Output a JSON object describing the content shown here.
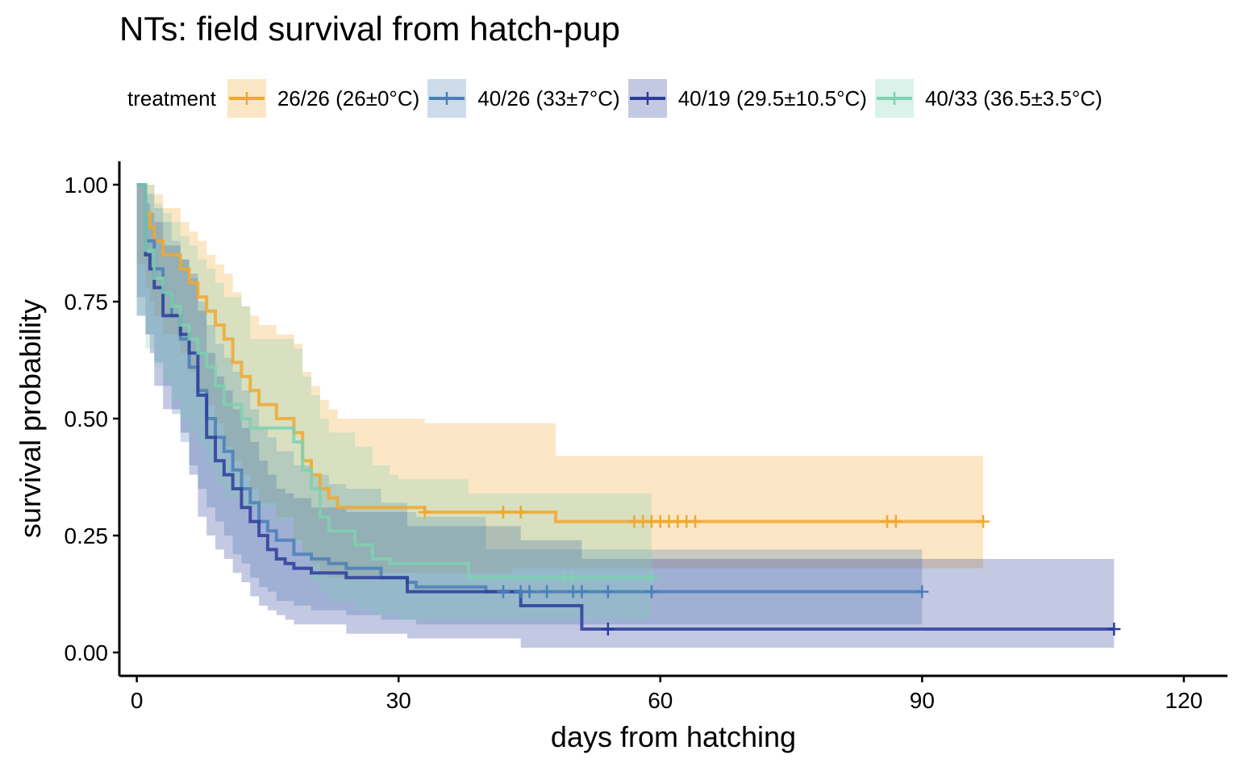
{
  "chart_data": {
    "type": "line",
    "subtype": "kaplan-meier step curves with confidence bands and censor marks",
    "title": "NTs: field survival from hatch-pup",
    "xlabel": "days from hatching",
    "ylabel": "survival probability",
    "xlim": [
      -2,
      125
    ],
    "ylim": [
      -0.05,
      1.05
    ],
    "xticks": [
      0,
      30,
      60,
      90,
      120
    ],
    "xtick_labels": [
      "0",
      "30",
      "60",
      "90",
      "120"
    ],
    "yticks": [
      0,
      0.25,
      0.5,
      0.75,
      1.0
    ],
    "ytick_labels": [
      "0.00",
      "0.25",
      "0.50",
      "0.75",
      "1.00"
    ],
    "grid": false,
    "legend_title": "treatment",
    "legend_position": "top",
    "series": [
      {
        "name": "26/26 (26±0°C)",
        "color": "#F0A830",
        "x": [
          0,
          1,
          1.5,
          2,
          3,
          5,
          6,
          7,
          8,
          9,
          10,
          11,
          12,
          13,
          14,
          16,
          18,
          19,
          20,
          21,
          22,
          23,
          25,
          28,
          33,
          35,
          40,
          43,
          48,
          97
        ],
        "y": [
          1.0,
          0.94,
          0.91,
          0.88,
          0.85,
          0.82,
          0.79,
          0.76,
          0.73,
          0.7,
          0.67,
          0.62,
          0.59,
          0.56,
          0.53,
          0.5,
          0.47,
          0.41,
          0.38,
          0.35,
          0.33,
          0.31,
          0.31,
          0.31,
          0.3,
          0.3,
          0.3,
          0.3,
          0.28,
          0.28
        ],
        "lower": [
          1.0,
          0.83,
          0.78,
          0.75,
          0.72,
          0.68,
          0.64,
          0.6,
          0.56,
          0.53,
          0.49,
          0.44,
          0.41,
          0.38,
          0.35,
          0.32,
          0.29,
          0.24,
          0.21,
          0.19,
          0.17,
          0.16,
          0.16,
          0.16,
          0.17,
          0.17,
          0.17,
          0.17,
          0.18,
          0.18
        ],
        "upper": [
          1.0,
          1.0,
          1.0,
          0.98,
          0.95,
          0.92,
          0.9,
          0.88,
          0.85,
          0.83,
          0.81,
          0.77,
          0.74,
          0.72,
          0.7,
          0.68,
          0.66,
          0.6,
          0.57,
          0.54,
          0.52,
          0.5,
          0.5,
          0.5,
          0.49,
          0.49,
          0.49,
          0.49,
          0.42,
          0.42
        ],
        "censored": [
          33,
          42,
          44,
          57,
          58,
          59,
          60,
          61,
          62,
          63,
          64,
          86,
          87,
          97
        ],
        "censored_y": [
          0.3,
          0.3,
          0.3,
          0.28,
          0.28,
          0.28,
          0.28,
          0.28,
          0.28,
          0.28,
          0.28,
          0.28,
          0.28,
          0.28
        ]
      },
      {
        "name": "40/26 (33±7°C)",
        "color": "#4A7FB8",
        "x": [
          0,
          1,
          2,
          3,
          4,
          5,
          6,
          7,
          8,
          9,
          10,
          11,
          12,
          13,
          14,
          15,
          16,
          18,
          20,
          22,
          24,
          28,
          31,
          32,
          40,
          90
        ],
        "y": [
          1.0,
          0.88,
          0.82,
          0.77,
          0.72,
          0.67,
          0.61,
          0.56,
          0.5,
          0.46,
          0.43,
          0.39,
          0.35,
          0.32,
          0.28,
          0.26,
          0.24,
          0.21,
          0.2,
          0.19,
          0.18,
          0.16,
          0.15,
          0.14,
          0.13,
          0.13
        ],
        "lower": [
          1.0,
          0.76,
          0.68,
          0.62,
          0.57,
          0.51,
          0.45,
          0.4,
          0.35,
          0.31,
          0.28,
          0.25,
          0.21,
          0.19,
          0.16,
          0.14,
          0.13,
          0.11,
          0.1,
          0.09,
          0.09,
          0.08,
          0.07,
          0.07,
          0.06,
          0.06
        ],
        "upper": [
          1.0,
          0.98,
          0.95,
          0.92,
          0.88,
          0.84,
          0.8,
          0.75,
          0.7,
          0.66,
          0.63,
          0.6,
          0.56,
          0.52,
          0.48,
          0.46,
          0.43,
          0.4,
          0.38,
          0.36,
          0.35,
          0.32,
          0.3,
          0.29,
          0.22,
          0.22
        ],
        "censored": [
          42,
          44,
          45,
          47,
          50,
          51,
          54,
          59,
          90
        ],
        "censored_y": [
          0.13,
          0.13,
          0.13,
          0.13,
          0.13,
          0.13,
          0.13,
          0.13,
          0.13
        ]
      },
      {
        "name": "40/19 (29.5±10.5°C)",
        "color": "#2B3D9A",
        "x": [
          0,
          1,
          1.5,
          2,
          3,
          5,
          6,
          7,
          8,
          9,
          10,
          11,
          12,
          13,
          14,
          15,
          16,
          17,
          18,
          20,
          24,
          31,
          44,
          51,
          112
        ],
        "y": [
          1.0,
          0.85,
          0.82,
          0.78,
          0.72,
          0.68,
          0.64,
          0.55,
          0.46,
          0.41,
          0.38,
          0.35,
          0.31,
          0.28,
          0.25,
          0.22,
          0.2,
          0.19,
          0.18,
          0.17,
          0.16,
          0.13,
          0.1,
          0.05,
          0.05
        ],
        "lower": [
          1.0,
          0.72,
          0.68,
          0.64,
          0.57,
          0.52,
          0.47,
          0.38,
          0.29,
          0.25,
          0.22,
          0.2,
          0.17,
          0.15,
          0.12,
          0.1,
          0.09,
          0.08,
          0.07,
          0.06,
          0.06,
          0.04,
          0.03,
          0.01,
          0.01
        ],
        "upper": [
          1.0,
          0.96,
          0.94,
          0.92,
          0.87,
          0.84,
          0.81,
          0.73,
          0.64,
          0.59,
          0.56,
          0.52,
          0.48,
          0.45,
          0.41,
          0.38,
          0.35,
          0.34,
          0.33,
          0.31,
          0.3,
          0.27,
          0.24,
          0.2,
          0.2
        ],
        "censored": [
          54,
          112
        ],
        "censored_y": [
          0.05,
          0.05
        ]
      },
      {
        "name": "40/33 (36.5±3.5°C)",
        "color": "#7FD1B2",
        "x": [
          0,
          1,
          2,
          3,
          4,
          5,
          6,
          7,
          8,
          9,
          10,
          12,
          13,
          16,
          18,
          19,
          20,
          21,
          22,
          25,
          27,
          29,
          30,
          38,
          59
        ],
        "y": [
          1.0,
          0.86,
          0.8,
          0.77,
          0.74,
          0.7,
          0.67,
          0.64,
          0.61,
          0.57,
          0.53,
          0.5,
          0.48,
          0.48,
          0.45,
          0.39,
          0.35,
          0.29,
          0.26,
          0.23,
          0.2,
          0.19,
          0.19,
          0.16,
          0.16
        ],
        "lower": [
          1.0,
          0.72,
          0.65,
          0.61,
          0.58,
          0.54,
          0.5,
          0.47,
          0.44,
          0.4,
          0.36,
          0.33,
          0.31,
          0.31,
          0.28,
          0.23,
          0.2,
          0.15,
          0.13,
          0.11,
          0.09,
          0.08,
          0.08,
          0.07,
          0.07
        ],
        "upper": [
          1.0,
          1.0,
          0.96,
          0.94,
          0.92,
          0.89,
          0.87,
          0.84,
          0.82,
          0.79,
          0.76,
          0.74,
          0.67,
          0.67,
          0.65,
          0.59,
          0.55,
          0.5,
          0.47,
          0.44,
          0.4,
          0.38,
          0.37,
          0.34,
          0.34
        ],
        "censored": [
          49,
          50,
          59
        ],
        "censored_y": [
          0.16,
          0.16,
          0.16
        ]
      }
    ]
  }
}
